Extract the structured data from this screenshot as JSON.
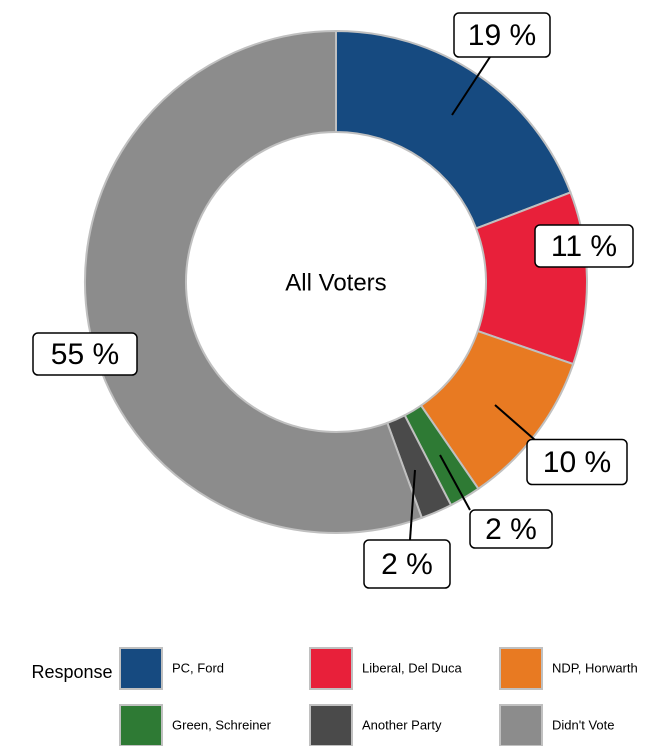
{
  "chart_data": {
    "type": "donut",
    "center_label": "All Voters",
    "categories": [
      "PC, Ford",
      "Liberal, Del Duca",
      "NDP, Horwarth",
      "Green, Schreiner",
      "Another Party",
      "Didn't Vote"
    ],
    "values": [
      19,
      11,
      10,
      2,
      2,
      55
    ],
    "value_labels": [
      "19 %",
      "11 %",
      "10 %",
      "2 %",
      "2 %",
      "55 %"
    ],
    "colors": [
      "#164a80",
      "#e8203a",
      "#e87a22",
      "#2e7a34",
      "#4a4a4a",
      "#8c8c8c"
    ],
    "legend_title": "Response"
  }
}
